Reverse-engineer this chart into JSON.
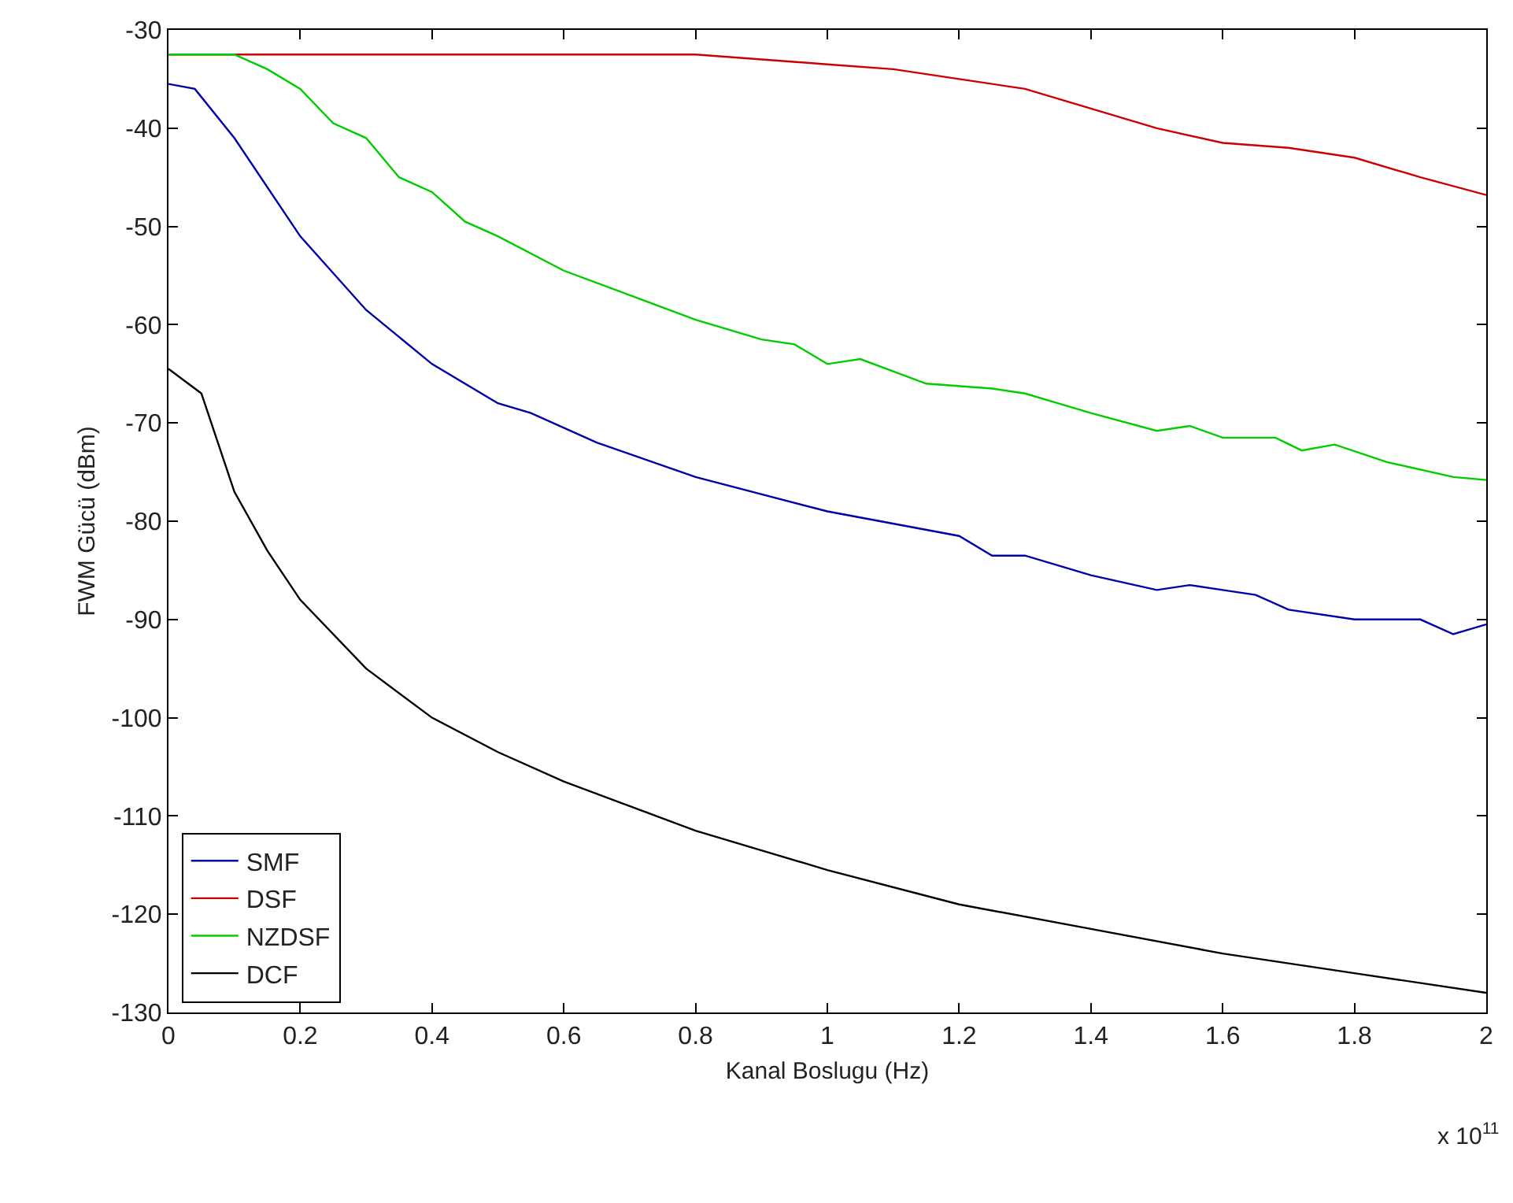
{
  "chart_data": {
    "type": "line",
    "xlabel": "Kanal Boslugu (Hz)",
    "ylabel": "FWM Gücü (dBm)",
    "xlim": [
      0,
      2
    ],
    "ylim": [
      -130,
      -30
    ],
    "xticks": [
      0,
      0.2,
      0.4,
      0.6,
      0.8,
      1,
      1.2,
      1.4,
      1.6,
      1.8,
      2
    ],
    "yticks": [
      -130,
      -120,
      -110,
      -100,
      -90,
      -80,
      -70,
      -60,
      -50,
      -40,
      -30
    ],
    "legend": "bottom left",
    "line_style": "solid",
    "annotations": [
      "x 10$^{11}$"
    ],
    "series": [
      {
        "name": "SMF",
        "color": "#0000aa",
        "x": [
          0,
          0.04,
          0.1,
          0.2,
          0.3,
          0.4,
          0.5,
          0.55,
          0.65,
          0.8,
          1.0,
          1.2,
          1.25,
          1.3,
          1.4,
          1.5,
          1.55,
          1.6,
          1.65,
          1.7,
          1.8,
          1.9,
          1.95,
          2.0
        ],
        "values": [
          -35.5,
          -36,
          -41,
          -51,
          -58.5,
          -64,
          -68,
          -69,
          -72,
          -75.5,
          -79,
          -81.5,
          -83.5,
          -83.5,
          -85.5,
          -87,
          -86.5,
          -87,
          -87.5,
          -89,
          -90,
          -90,
          -91.5,
          -90.5
        ]
      },
      {
        "name": "DSF",
        "color": "#cc0000",
        "x": [
          0,
          0.8,
          1.0,
          1.1,
          1.2,
          1.3,
          1.4,
          1.5,
          1.6,
          1.7,
          1.8,
          1.9,
          2.0
        ],
        "values": [
          -32.5,
          -32.5,
          -33.5,
          -34,
          -35,
          -36,
          -38,
          -40,
          -41.5,
          -42,
          -43,
          -45,
          -46.8
        ]
      },
      {
        "name": "NZDSF",
        "color": "#00cc00",
        "x": [
          0,
          0.1,
          0.15,
          0.2,
          0.25,
          0.3,
          0.35,
          0.4,
          0.45,
          0.5,
          0.6,
          0.7,
          0.8,
          0.9,
          0.95,
          1.0,
          1.05,
          1.15,
          1.25,
          1.3,
          1.4,
          1.5,
          1.55,
          1.6,
          1.68,
          1.72,
          1.77,
          1.85,
          1.95,
          2.0
        ],
        "values": [
          -32.5,
          -32.5,
          -34,
          -36,
          -39.5,
          -41,
          -45,
          -46.5,
          -49.5,
          -51,
          -54.5,
          -57,
          -59.5,
          -61.5,
          -62,
          -64,
          -63.5,
          -66,
          -66.5,
          -67,
          -69,
          -70.8,
          -70.3,
          -71.5,
          -71.5,
          -72.8,
          -72.2,
          -74,
          -75.5,
          -75.8
        ]
      },
      {
        "name": "DCF",
        "color": "#000000",
        "x": [
          0,
          0.05,
          0.1,
          0.15,
          0.2,
          0.3,
          0.4,
          0.5,
          0.6,
          0.7,
          0.8,
          0.9,
          1.0,
          1.2,
          1.4,
          1.6,
          1.8,
          2.0
        ],
        "values": [
          -64.5,
          -67,
          -77,
          -83,
          -88,
          -95,
          -100,
          -103.5,
          -106.5,
          -109,
          -111.5,
          -113.5,
          -115.5,
          -119,
          -121.5,
          -124,
          -126,
          -128
        ]
      }
    ]
  }
}
